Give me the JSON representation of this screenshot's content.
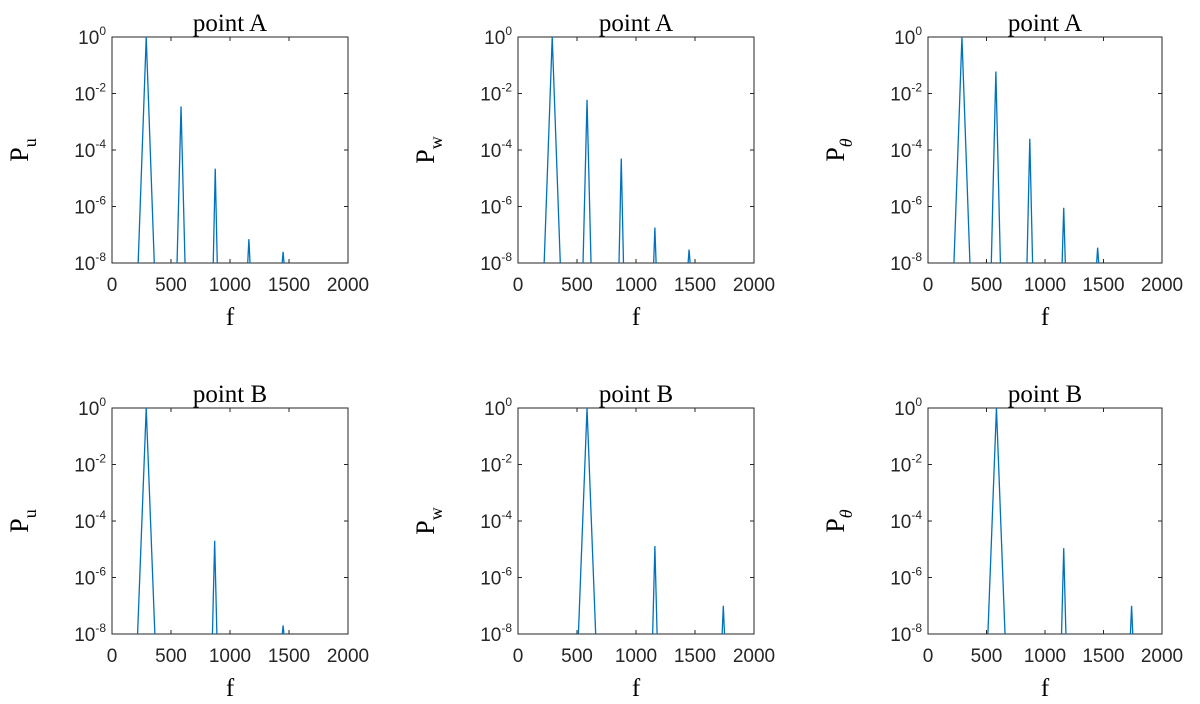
{
  "chart_data": [
    {
      "type": "line",
      "title": "point A",
      "xlabel": "f",
      "ylabel": "P",
      "ylabel_sub": "u",
      "xlim": [
        0,
        2000
      ],
      "ylim": [
        1e-08,
        1
      ],
      "yscale": "log",
      "grid": false,
      "xticks": [
        "0",
        "500",
        "1000",
        "1500",
        "2000"
      ],
      "yticks": [
        "-8",
        "-6",
        "-4",
        "-2",
        "0"
      ],
      "series": [
        {
          "color": "#0072bd",
          "peaks": [
            {
              "f": 290,
              "p": 1.0,
              "w": 70
            },
            {
              "f": 585,
              "p": 0.0035,
              "w": 35
            },
            {
              "f": 875,
              "p": 2.2e-05,
              "w": 18
            },
            {
              "f": 1160,
              "p": 7e-08,
              "w": 12
            },
            {
              "f": 1450,
              "p": 2.5e-08,
              "w": 12
            }
          ]
        }
      ]
    },
    {
      "type": "line",
      "title": "point A",
      "xlabel": "f",
      "ylabel": "P",
      "ylabel_sub": "w",
      "xlim": [
        0,
        2000
      ],
      "ylim": [
        1e-08,
        1
      ],
      "yscale": "log",
      "grid": false,
      "xticks": [
        "0",
        "500",
        "1000",
        "1500",
        "2000"
      ],
      "yticks": [
        "-8",
        "-6",
        "-4",
        "-2",
        "0"
      ],
      "series": [
        {
          "color": "#0072bd",
          "peaks": [
            {
              "f": 290,
              "p": 1.0,
              "w": 70
            },
            {
              "f": 585,
              "p": 0.006,
              "w": 35
            },
            {
              "f": 875,
              "p": 5e-05,
              "w": 20
            },
            {
              "f": 1160,
              "p": 1.8e-07,
              "w": 12
            },
            {
              "f": 1450,
              "p": 3e-08,
              "w": 12
            }
          ]
        }
      ]
    },
    {
      "type": "line",
      "title": "point A",
      "xlabel": "f",
      "ylabel": "P",
      "ylabel_sub": "θ",
      "xlim": [
        0,
        2000
      ],
      "ylim": [
        1e-08,
        1
      ],
      "yscale": "log",
      "grid": false,
      "xticks": [
        "0",
        "500",
        "1000",
        "1500",
        "2000"
      ],
      "yticks": [
        "-8",
        "-6",
        "-4",
        "-2",
        "0"
      ],
      "series": [
        {
          "color": "#0072bd",
          "peaks": [
            {
              "f": 290,
              "p": 1.0,
              "w": 70
            },
            {
              "f": 580,
              "p": 0.06,
              "w": 40
            },
            {
              "f": 870,
              "p": 0.00025,
              "w": 25
            },
            {
              "f": 1160,
              "p": 9e-07,
              "w": 15
            },
            {
              "f": 1450,
              "p": 3.5e-08,
              "w": 12
            }
          ]
        }
      ]
    },
    {
      "type": "line",
      "title": "point B",
      "xlabel": "f",
      "ylabel": "P",
      "ylabel_sub": "u",
      "xlim": [
        0,
        2000
      ],
      "ylim": [
        1e-08,
        1
      ],
      "yscale": "log",
      "grid": false,
      "xticks": [
        "0",
        "500",
        "1000",
        "1500",
        "2000"
      ],
      "yticks": [
        "-8",
        "-6",
        "-4",
        "-2",
        "0"
      ],
      "series": [
        {
          "color": "#0072bd",
          "peaks": [
            {
              "f": 290,
              "p": 1.0,
              "w": 75
            },
            {
              "f": 870,
              "p": 2e-05,
              "w": 20
            },
            {
              "f": 1450,
              "p": 2e-08,
              "w": 12
            }
          ]
        }
      ]
    },
    {
      "type": "line",
      "title": "point B",
      "xlabel": "f",
      "ylabel": "P",
      "ylabel_sub": "w",
      "xlim": [
        0,
        2000
      ],
      "ylim": [
        1e-08,
        1
      ],
      "yscale": "log",
      "grid": false,
      "xticks": [
        "0",
        "500",
        "1000",
        "1500",
        "2000"
      ],
      "yticks": [
        "-8",
        "-6",
        "-4",
        "-2",
        "0"
      ],
      "series": [
        {
          "color": "#0072bd",
          "peaks": [
            {
              "f": 585,
              "p": 1.0,
              "w": 75
            },
            {
              "f": 1160,
              "p": 1.3e-05,
              "w": 20
            },
            {
              "f": 1740,
              "p": 1e-07,
              "w": 12
            }
          ]
        }
      ]
    },
    {
      "type": "line",
      "title": "point B",
      "xlabel": "f",
      "ylabel": "P",
      "ylabel_sub": "θ",
      "xlim": [
        0,
        2000
      ],
      "ylim": [
        1e-08,
        1
      ],
      "yscale": "log",
      "grid": false,
      "xticks": [
        "0",
        "500",
        "1000",
        "1500",
        "2000"
      ],
      "yticks": [
        "-8",
        "-6",
        "-4",
        "-2",
        "0"
      ],
      "series": [
        {
          "color": "#0072bd",
          "peaks": [
            {
              "f": 585,
              "p": 1.0,
              "w": 75
            },
            {
              "f": 1160,
              "p": 1.1e-05,
              "w": 20
            },
            {
              "f": 1740,
              "p": 1e-07,
              "w": 12
            }
          ]
        }
      ]
    }
  ]
}
